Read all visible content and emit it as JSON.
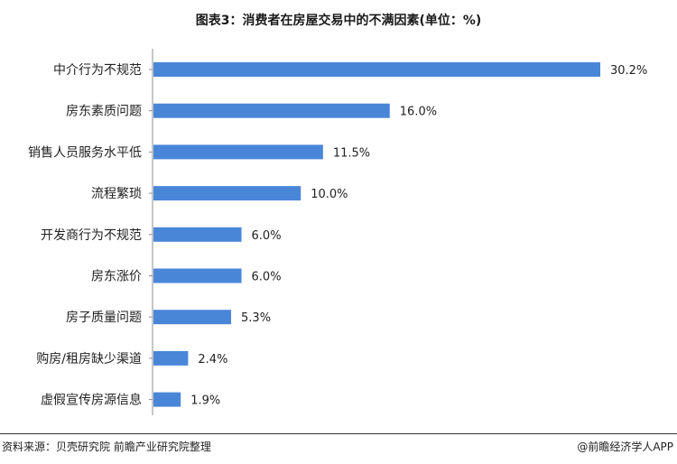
{
  "chart_data": {
    "type": "bar",
    "orientation": "horizontal",
    "title": "图表3：消费者在房屋交易中的不满因素(单位：%)",
    "categories": [
      "中介行为不规范",
      "房东素质问题",
      "销售人员服务水平低",
      "流程繁琐",
      "开发商行为不规范",
      "房东涨价",
      "房子质量问题",
      "购房/租房缺少渠道",
      "虚假宣传房源信息"
    ],
    "values": [
      30.2,
      16.0,
      11.5,
      10.0,
      6.0,
      6.0,
      5.3,
      2.4,
      1.9
    ],
    "value_labels": [
      "30.2%",
      "16.0%",
      "11.5%",
      "10.0%",
      "6.0%",
      "6.0%",
      "5.3%",
      "2.4%",
      "1.9%"
    ],
    "xlim": [
      0,
      30.2
    ],
    "bar_color": "#4a86d8",
    "grid": false,
    "legend": "none"
  },
  "footer": {
    "source": "资料来源：贝壳研究院 前瞻产业研究院整理",
    "brand": "@前瞻经济学人APP"
  }
}
